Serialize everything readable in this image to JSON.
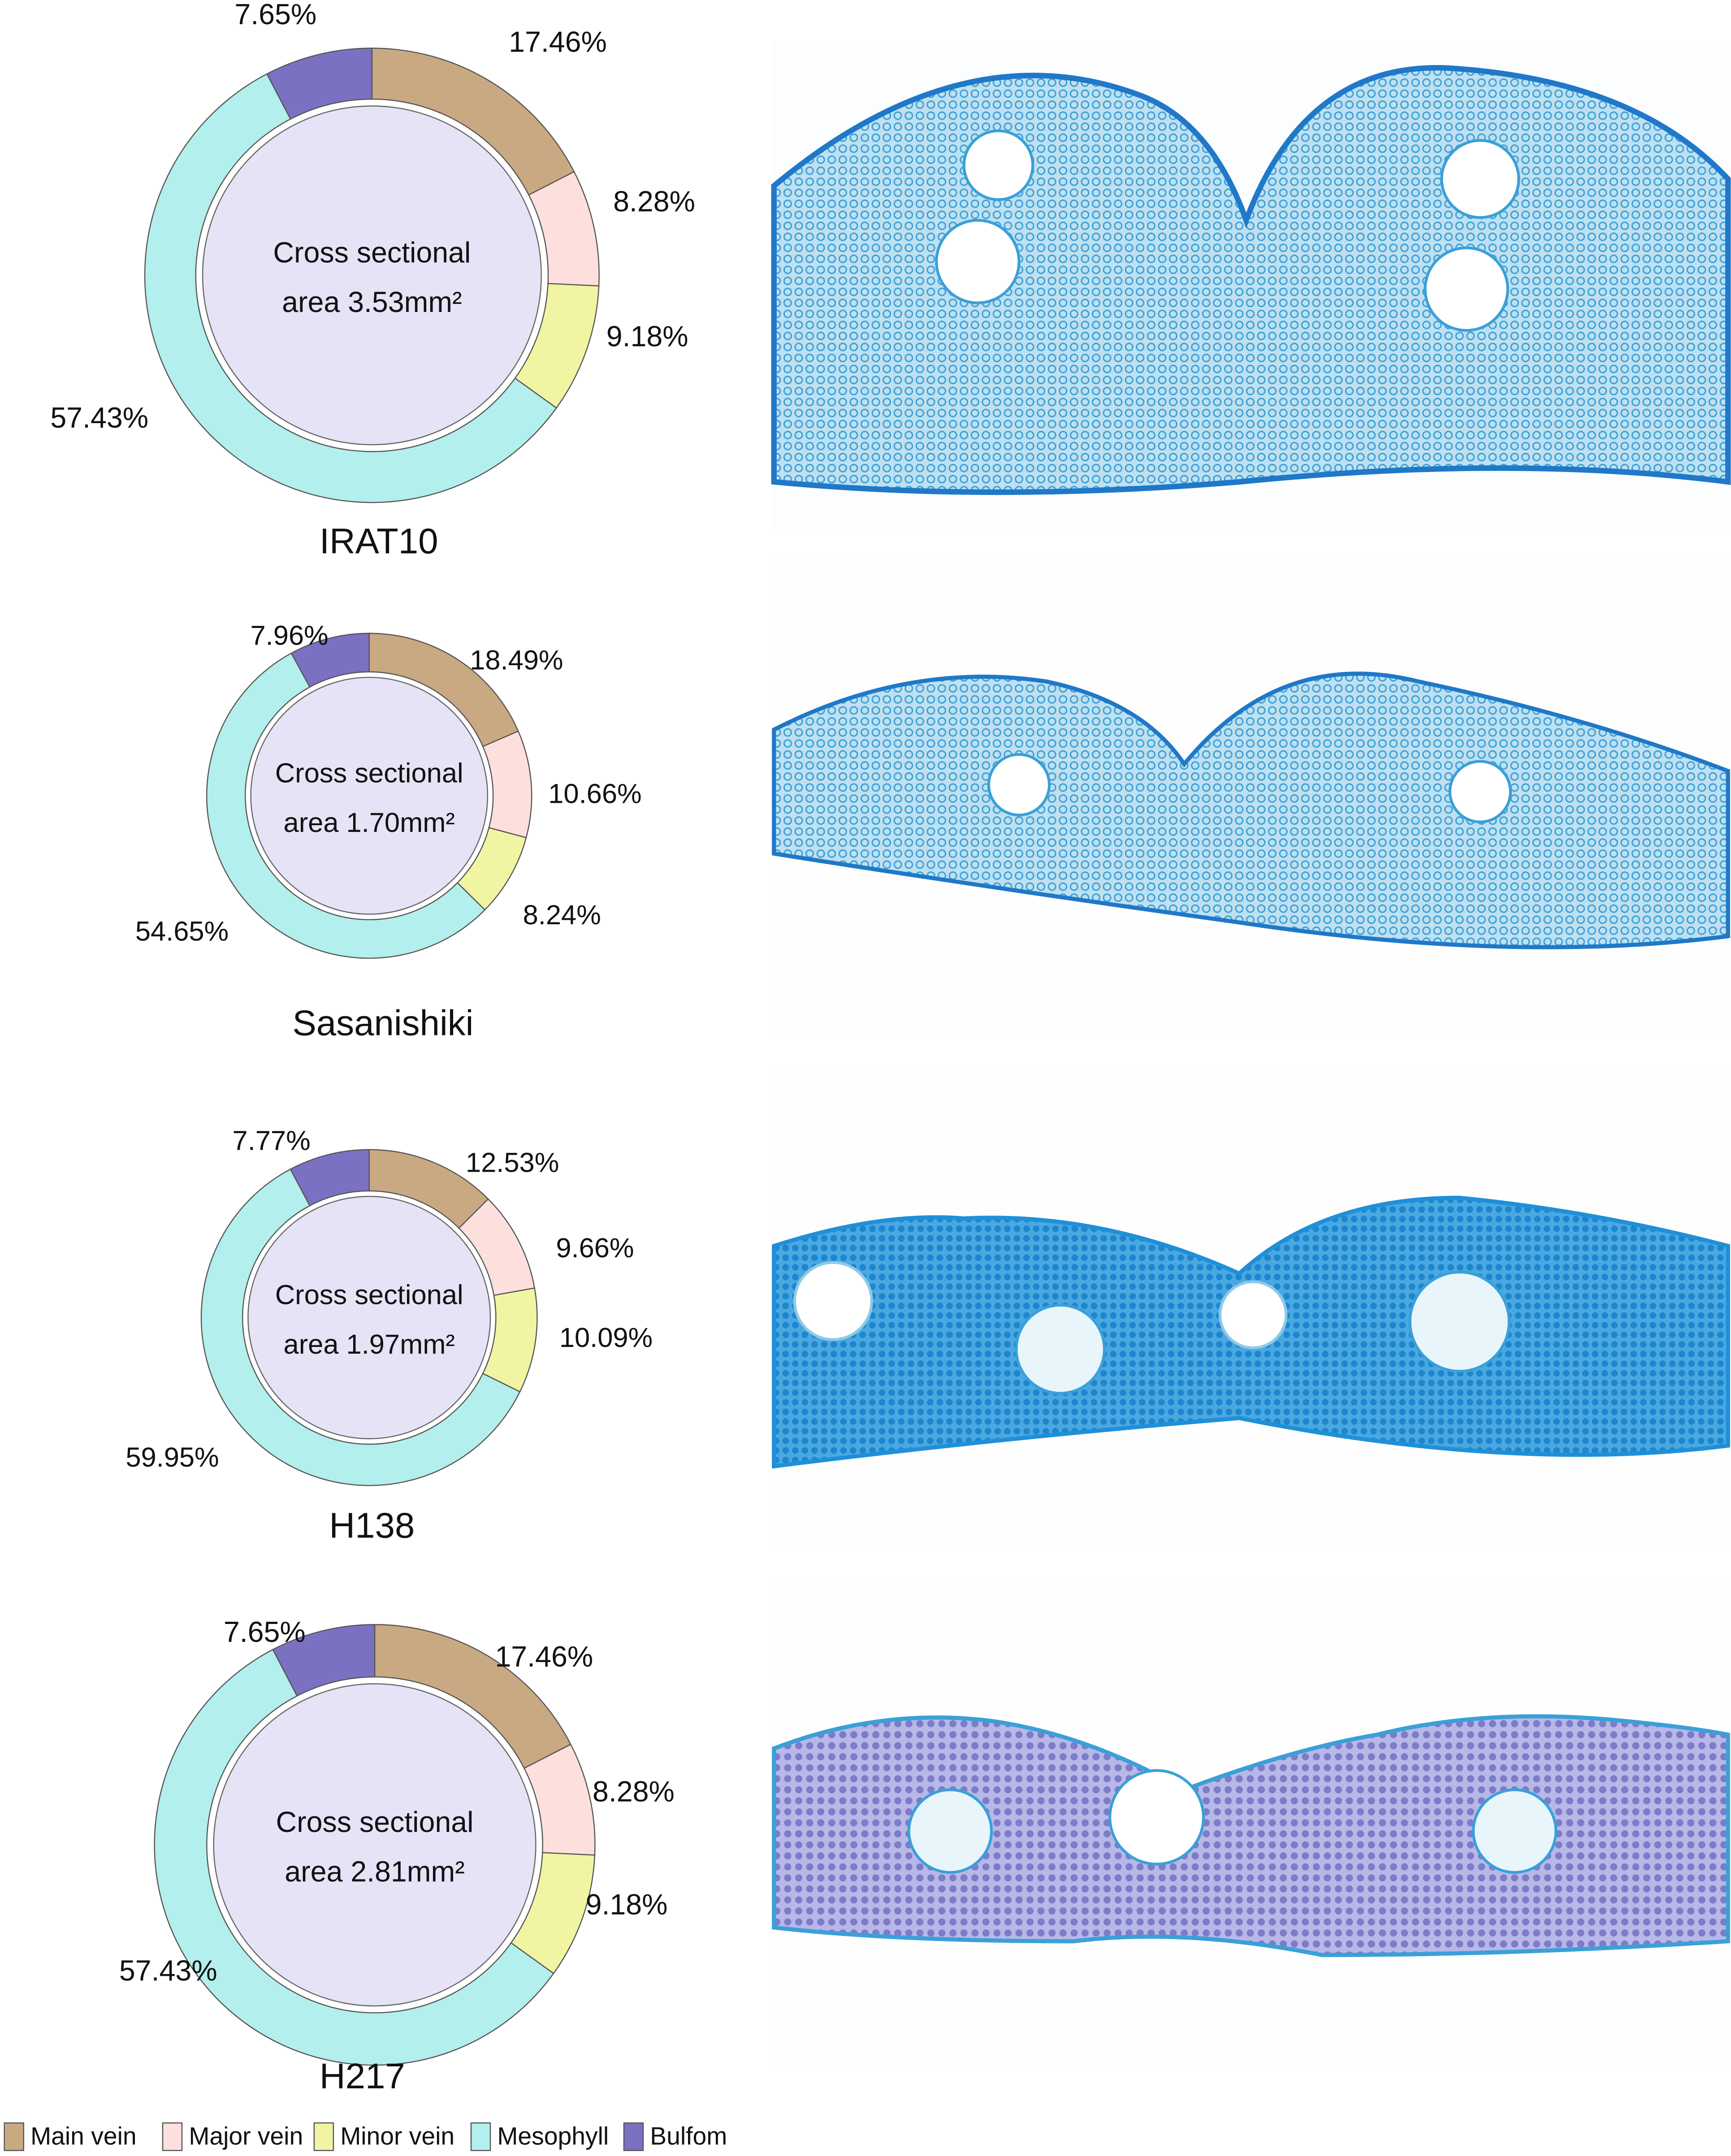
{
  "chart_data": [
    {
      "type": "donut",
      "title": "IRAT10",
      "center_text": [
        "Cross sectional",
        "area 3.53mm²"
      ],
      "categories": [
        "Main vein",
        "Major vein",
        "Minor vein",
        "Mesophyll",
        "Bulfom"
      ],
      "colors": [
        "#c9a982",
        "#fde0dd",
        "#f1f5a3",
        "#b3efec",
        "#7b71c3"
      ],
      "values": [
        17.46,
        8.28,
        9.18,
        57.43,
        7.65
      ],
      "value_labels": [
        "17.46%",
        "8.28%",
        "9.18%",
        "57.43%",
        "7.65%"
      ]
    },
    {
      "type": "donut",
      "title": "Sasanishiki",
      "center_text": [
        "Cross sectional",
        "area 1.70mm²"
      ],
      "categories": [
        "Main vein",
        "Major vein",
        "Minor vein",
        "Mesophyll",
        "Bulfom"
      ],
      "colors": [
        "#c9a982",
        "#fde0dd",
        "#f1f5a3",
        "#b3efec",
        "#7b71c3"
      ],
      "values": [
        18.49,
        10.66,
        8.24,
        54.65,
        7.96
      ],
      "value_labels": [
        "18.49%",
        "10.66%",
        "8.24%",
        "54.65%",
        "7.96%"
      ]
    },
    {
      "type": "donut",
      "title": "H138",
      "center_text": [
        "Cross sectional",
        "area 1.97mm²"
      ],
      "categories": [
        "Main vein",
        "Major vein",
        "Minor vein",
        "Mesophyll",
        "Bulfom"
      ],
      "colors": [
        "#c9a982",
        "#fde0dd",
        "#f1f5a3",
        "#b3efec",
        "#7b71c3"
      ],
      "values": [
        12.53,
        9.66,
        10.09,
        59.95,
        7.77
      ],
      "value_labels": [
        "12.53%",
        "9.66%",
        "10.09%",
        "59.95%",
        "7.77%"
      ]
    },
    {
      "type": "donut",
      "title": "H217",
      "center_text": [
        "Cross sectional",
        "area 2.81mm²"
      ],
      "categories": [
        "Main vein",
        "Major vein",
        "Minor vein",
        "Mesophyll",
        "Bulfom"
      ],
      "colors": [
        "#c9a982",
        "#fde0dd",
        "#f1f5a3",
        "#b3efec",
        "#7b71c3"
      ],
      "values": [
        17.46,
        8.28,
        9.18,
        57.43,
        7.65
      ],
      "value_labels": [
        "17.46%",
        "8.28%",
        "9.18%",
        "57.43%",
        "7.65%"
      ]
    }
  ]
}
